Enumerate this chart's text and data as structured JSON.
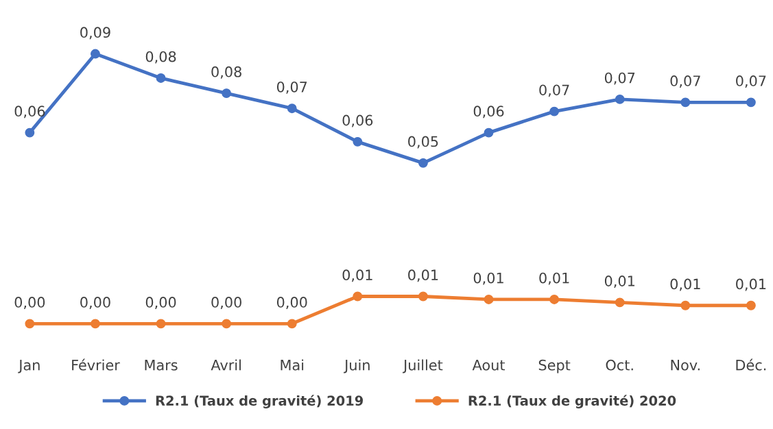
{
  "chart_data": {
    "type": "line",
    "categories": [
      "Jan",
      "Février",
      "Mars",
      "Avril",
      "Mai",
      "Juin",
      "Juillet",
      "Aout",
      "Sept",
      "Oct.",
      "Nov.",
      "Déc."
    ],
    "series": [
      {
        "name": "R2.1 (Taux de gravité) 2019",
        "color": "#4472c4",
        "values": [
          0.063,
          0.089,
          0.081,
          0.076,
          0.071,
          0.06,
          0.053,
          0.063,
          0.07,
          0.074,
          0.073,
          0.073
        ],
        "value_labels": [
          "0,06",
          "0,09",
          "0,08",
          "0,08",
          "0,07",
          "0,06",
          "0,05",
          "0,06",
          "0,07",
          "0,07",
          "0,07",
          "0,07"
        ]
      },
      {
        "name": "R2.1 (Taux de gravité) 2020",
        "color": "#ed7d31",
        "values": [
          0,
          0,
          0,
          0,
          0,
          0.009,
          0.009,
          0.008,
          0.008,
          0.007,
          0.006,
          0.006
        ],
        "value_labels": [
          "0,00",
          "0,00",
          "0,00",
          "0,00",
          "0,00",
          "0,01",
          "0,01",
          "0,01",
          "0,01",
          "0,01",
          "0,01",
          "0,01"
        ]
      }
    ],
    "marker": "circle",
    "line_style": "solid",
    "legend": "bottom",
    "grid": false
  }
}
